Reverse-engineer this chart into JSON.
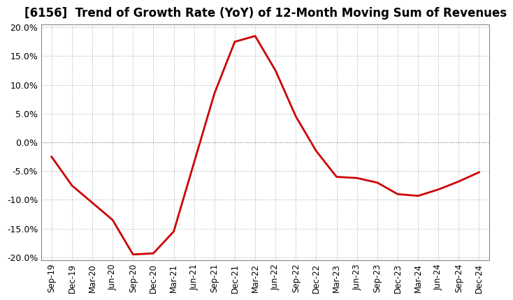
{
  "title": "[6156]  Trend of Growth Rate (YoY) of 12-Month Moving Sum of Revenues",
  "title_fontsize": 12,
  "line_color": "#cc0000",
  "background_color": "#ffffff",
  "plot_bg_color": "#ffffff",
  "grid_color": "#aaaaaa",
  "ylim": [
    -0.205,
    0.205
  ],
  "yticks": [
    -0.2,
    -0.15,
    -0.1,
    -0.05,
    0.0,
    0.05,
    0.1,
    0.15,
    0.2
  ],
  "x_labels": [
    "Sep-19",
    "Dec-19",
    "Mar-20",
    "Jun-20",
    "Sep-20",
    "Dec-20",
    "Mar-21",
    "Jun-21",
    "Sep-21",
    "Dec-21",
    "Mar-22",
    "Jun-22",
    "Sep-22",
    "Dec-22",
    "Mar-23",
    "Jun-23",
    "Sep-23",
    "Dec-23",
    "Mar-24",
    "Jun-24",
    "Sep-24",
    "Dec-24"
  ],
  "y_values": [
    -0.025,
    -0.075,
    -0.105,
    -0.135,
    -0.195,
    -0.193,
    -0.155,
    -0.035,
    0.085,
    0.175,
    0.185,
    0.125,
    0.045,
    -0.015,
    -0.06,
    -0.062,
    -0.07,
    -0.09,
    -0.093,
    -0.082,
    -0.068,
    -0.052
  ]
}
